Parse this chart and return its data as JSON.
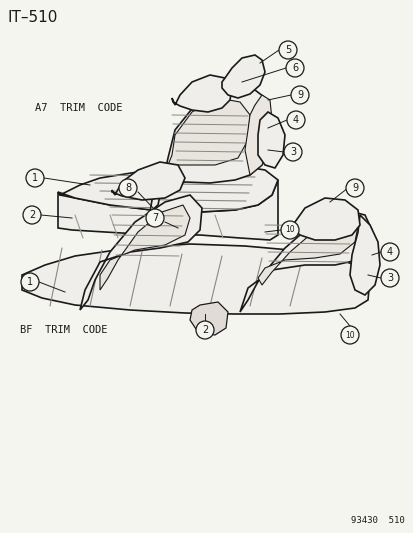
{
  "title": "IT–510",
  "label_a7": "A7  TRIM  CODE",
  "label_bf": "BF  TRIM  CODE",
  "part_number": "93430  510",
  "bg_color": "#f5f5f0",
  "line_color": "#1a1a1a",
  "face_color": "#f0eeea",
  "stripe_color": "#d8d4cc",
  "circle_r": 0.018
}
